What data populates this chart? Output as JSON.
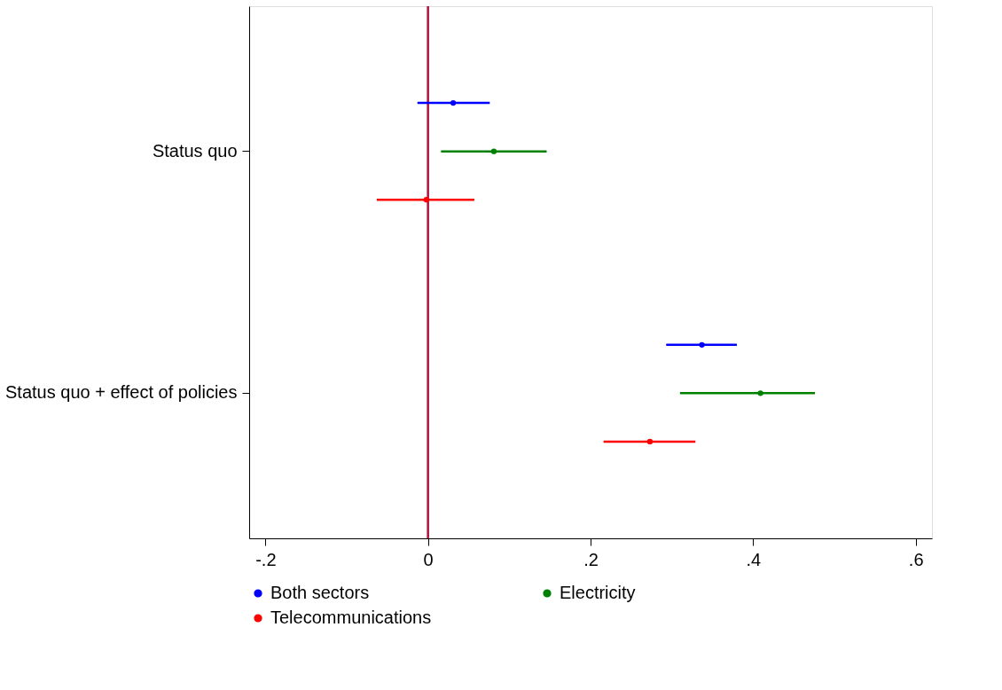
{
  "chart_data": {
    "type": "scatter",
    "orientation": "horizontal",
    "categories": [
      "Status quo",
      "Status quo + effect of policies"
    ],
    "series": [
      {
        "name": "Both sectors",
        "color": "#0000ff",
        "values": [
          0.031,
          0.337
        ],
        "errors": [
          [
            -0.013,
            0.076
          ],
          [
            0.293,
            0.38
          ]
        ]
      },
      {
        "name": "Electricity",
        "color": "#008000",
        "values": [
          0.081,
          0.409
        ],
        "errors": [
          [
            0.016,
            0.146
          ],
          [
            0.31,
            0.476
          ]
        ]
      },
      {
        "name": "Telecommunications",
        "color": "#ff0000",
        "values": [
          -0.002,
          0.273
        ],
        "errors": [
          [
            -0.063,
            0.057
          ],
          [
            0.216,
            0.329
          ]
        ]
      }
    ],
    "xlim": [
      -0.22,
      0.62
    ],
    "xticks": [
      {
        "value": -0.2,
        "label": "-.2"
      },
      {
        "value": 0,
        "label": "0"
      },
      {
        "value": 0.2,
        "label": ".2"
      },
      {
        "value": 0.4,
        "label": ".4"
      },
      {
        "value": 0.6,
        "label": ".6"
      }
    ],
    "ref_lines": [
      {
        "axis": "x",
        "value": 0,
        "color": "#b0103a"
      }
    ],
    "marker": "circle",
    "grid": false,
    "legend": "bottom"
  }
}
